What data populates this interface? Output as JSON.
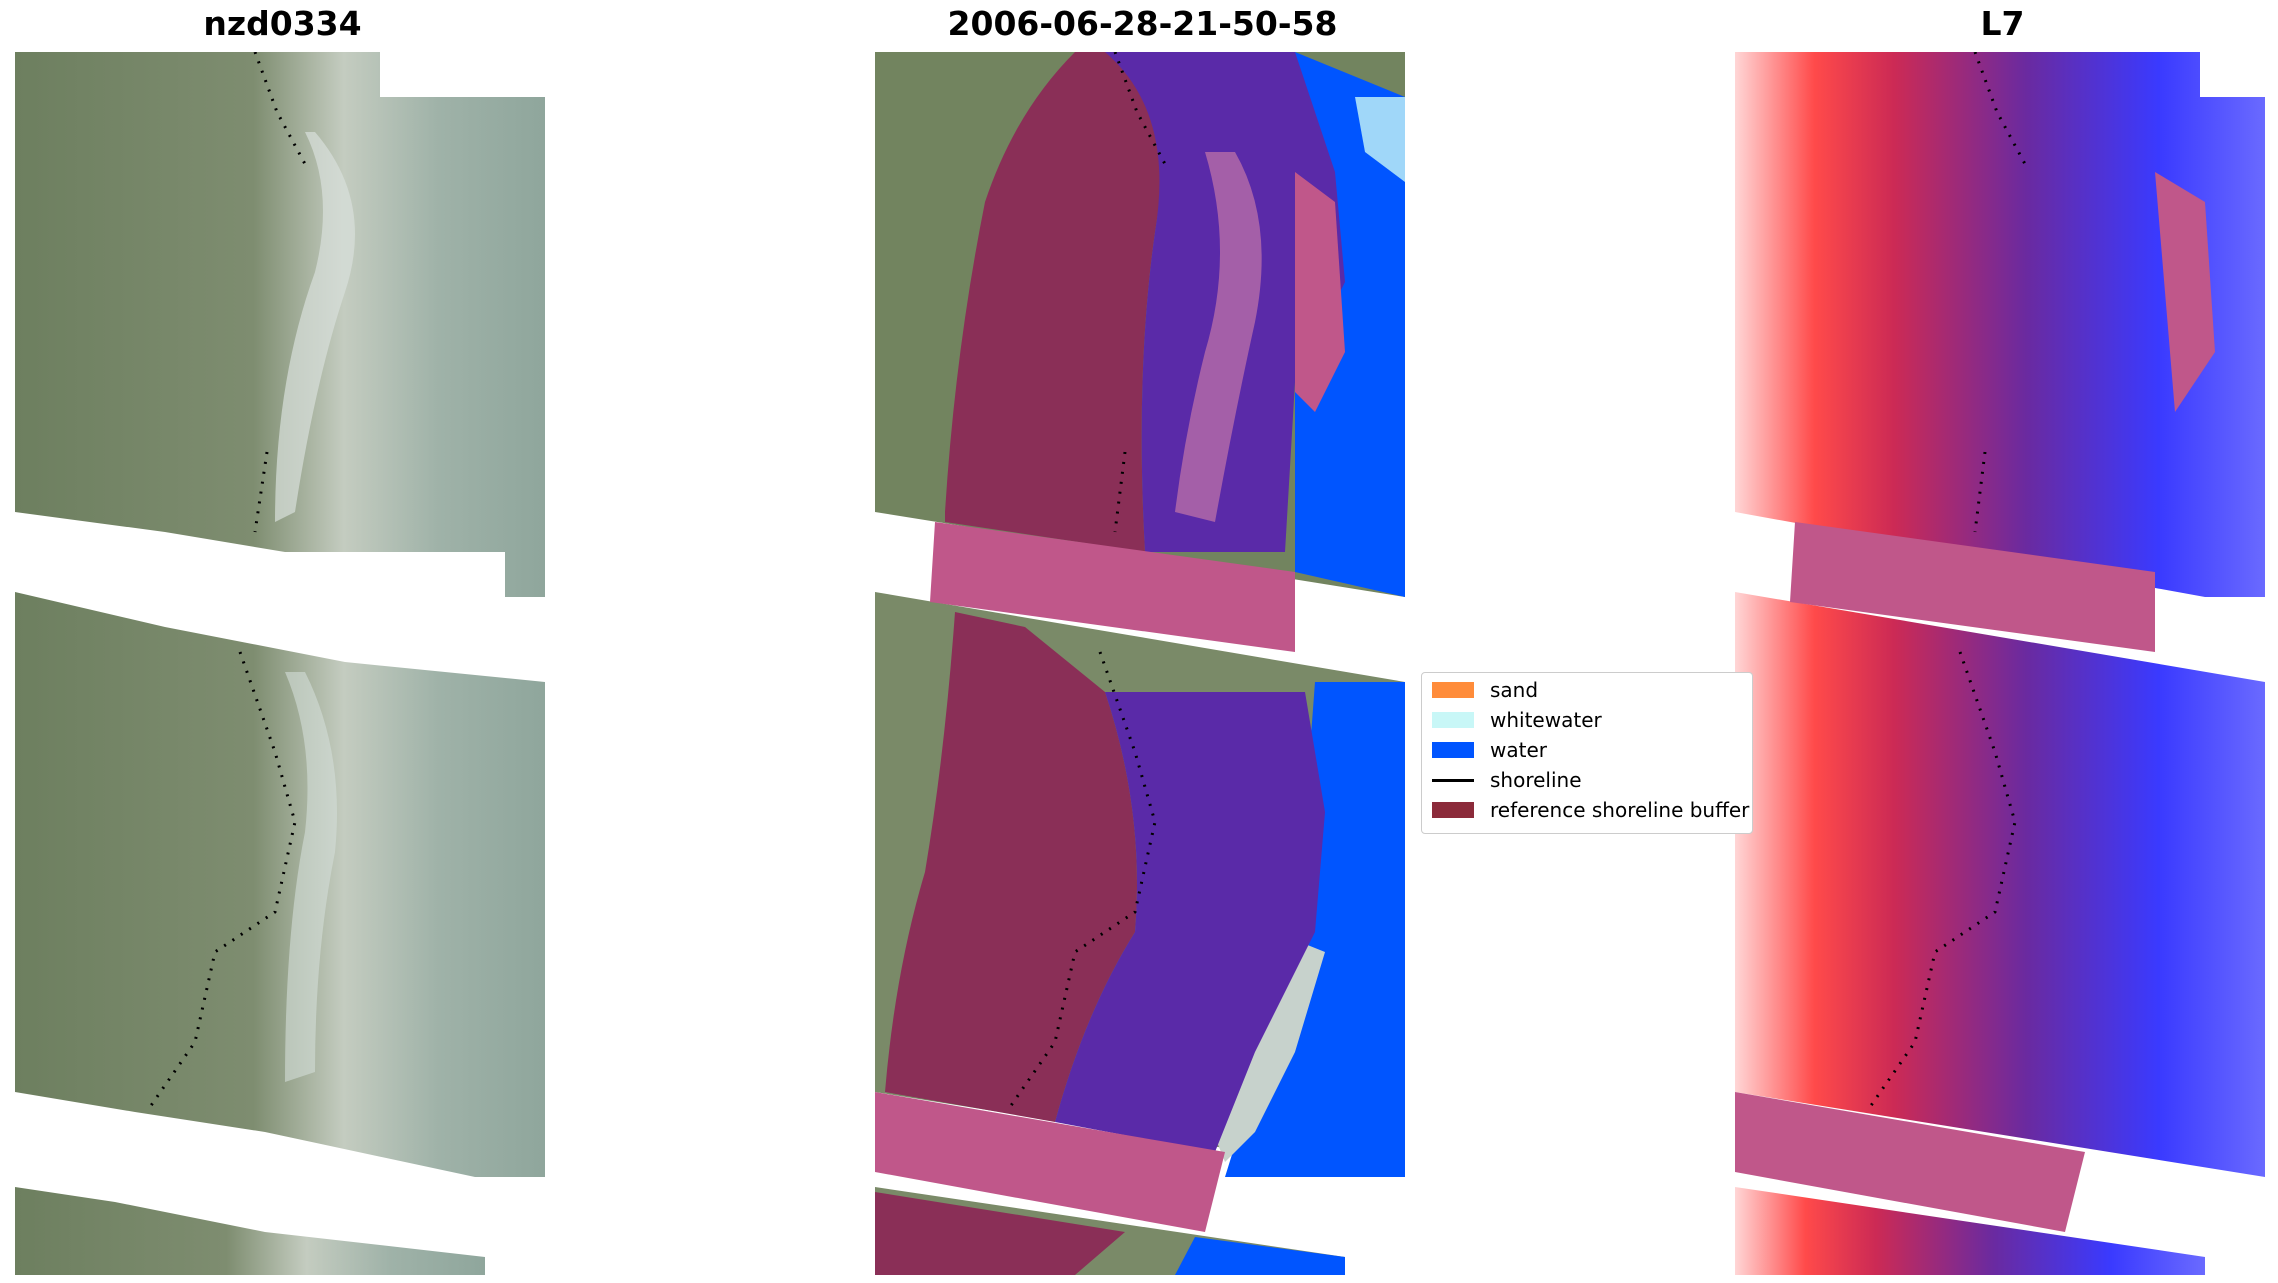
{
  "panels": [
    {
      "title": "nzd0334"
    },
    {
      "title": "2006-06-28-21-50-58"
    },
    {
      "title": "L7"
    }
  ],
  "legend": {
    "items": [
      {
        "label": "sand",
        "color": "#ff8c3a"
      },
      {
        "label": "whitewater",
        "color": "#c8f7f7"
      },
      {
        "label": "water",
        "color": "#0055ff"
      },
      {
        "label": "shoreline",
        "color": "#000000"
      },
      {
        "label": "reference shoreline buffer",
        "color": "#8b2a3a"
      }
    ]
  },
  "colors": {
    "land": "#7f9070",
    "land_dark": "#6a7d5c",
    "surf": "#c9d6d0",
    "sea_grey": "#8ea39a",
    "buffer_overlay": "#c0578a",
    "classified_land": "#8a2f57",
    "classified_water": "#5a2aa8",
    "index_red": "#ff4a4a",
    "index_blue": "#3a3aff"
  }
}
